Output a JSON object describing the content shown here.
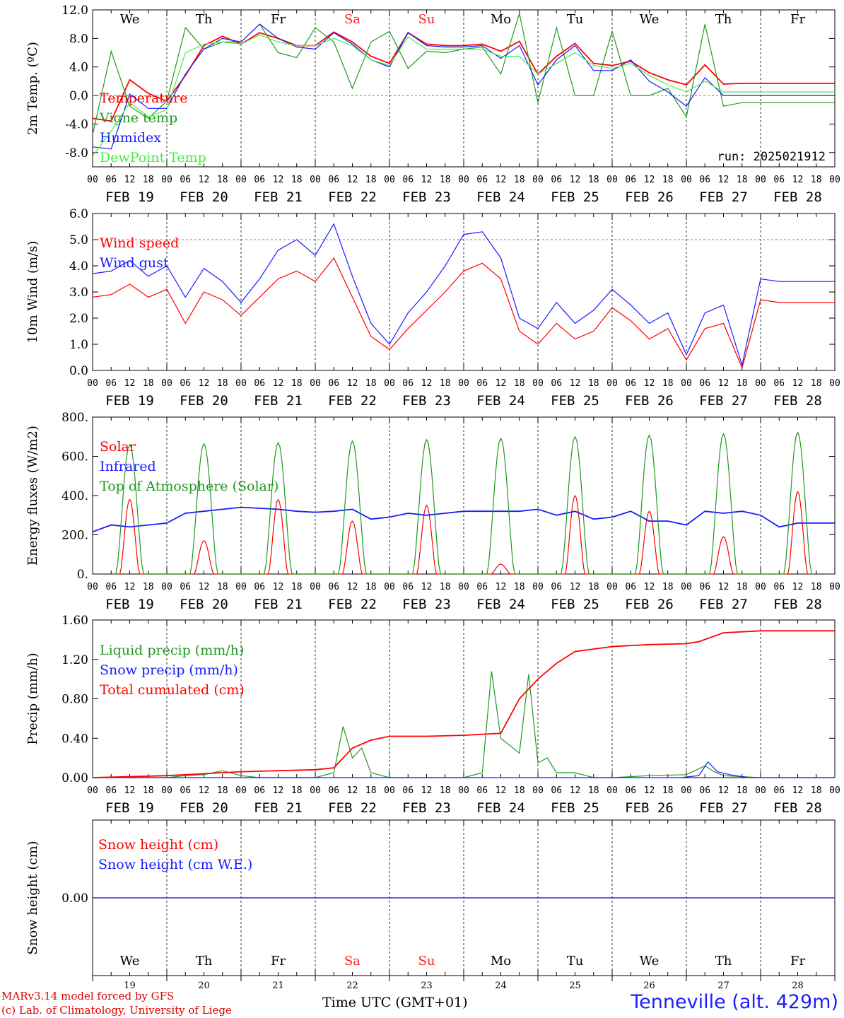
{
  "meteogram": {
    "run_label": "run: 2025021912",
    "days": [
      {
        "name": "We",
        "date": "FEB 19",
        "num": "19",
        "weekend": false
      },
      {
        "name": "Th",
        "date": "FEB 20",
        "num": "20",
        "weekend": false
      },
      {
        "name": "Fr",
        "date": "FEB 21",
        "num": "21",
        "weekend": false
      },
      {
        "name": "Sa",
        "date": "FEB 22",
        "num": "22",
        "weekend": true
      },
      {
        "name": "Su",
        "date": "FEB 23",
        "num": "23",
        "weekend": true
      },
      {
        "name": "Mo",
        "date": "FEB 24",
        "num": "24",
        "weekend": false
      },
      {
        "name": "Tu",
        "date": "FEB 25",
        "num": "25",
        "weekend": false
      },
      {
        "name": "We",
        "date": "FEB 26",
        "num": "26",
        "weekend": false
      },
      {
        "name": "Th",
        "date": "FEB 27",
        "num": "27",
        "weekend": false
      },
      {
        "name": "Fr",
        "date": "FEB 28",
        "num": "28",
        "weekend": false
      }
    ],
    "hour_ticks": [
      "00",
      "06",
      "12",
      "18"
    ],
    "final_hour_tick": "00",
    "colors": {
      "weekend": "#ff2020",
      "weekday": "#000000"
    },
    "footer": {
      "model": "MARv3.14 model forced by GFS",
      "credit": "(c) Lab. of Climatology, University of Liege",
      "xlabel": "Time UTC (GMT+01)",
      "station": "Tenneville (alt. 429m)"
    }
  },
  "chart_data": [
    {
      "type": "line",
      "ylabel": "2m Temp. (ºC)",
      "ylim": [
        -10,
        12
      ],
      "ytick_labels": [
        "12.0",
        "8.0",
        "4.0",
        "0.0",
        "-4.0",
        "-8.0"
      ],
      "reference_line": 0,
      "x_unit": "hours since FEB 19 00 UTC",
      "series": [
        {
          "name": "Temperature",
          "color": "#ff0000",
          "x": [
            0,
            6,
            12,
            18,
            24,
            30,
            36,
            42,
            48,
            54,
            60,
            66,
            72,
            78,
            84,
            90,
            96,
            102,
            108,
            114,
            120,
            126,
            132,
            138,
            144,
            150,
            156,
            162,
            168,
            174,
            180,
            186,
            192,
            198,
            204,
            210,
            216,
            222,
            228,
            234,
            240
          ],
          "y": [
            -3.2,
            -3.6,
            2.2,
            0.3,
            -0.8,
            2.8,
            7.0,
            8.3,
            7.2,
            8.8,
            8.0,
            7.0,
            7.0,
            8.9,
            7.5,
            5.5,
            4.5,
            8.8,
            7.2,
            7.0,
            7.0,
            7.2,
            6.2,
            7.6,
            3.0,
            5.5,
            7.3,
            4.5,
            4.2,
            4.8,
            3.2,
            2.2,
            1.5,
            4.3,
            1.6,
            1.7,
            1.7,
            1.7,
            1.7,
            1.7,
            1.7
          ]
        },
        {
          "name": "Vigne temp",
          "color": "#1f9a1f",
          "x": [
            0,
            6,
            12,
            18,
            24,
            30,
            36,
            42,
            48,
            54,
            60,
            66,
            72,
            78,
            84,
            90,
            96,
            102,
            108,
            114,
            120,
            126,
            132,
            138,
            144,
            150,
            156,
            162,
            168,
            174,
            180,
            186,
            192,
            198,
            204,
            210,
            216,
            222,
            228,
            234,
            240
          ],
          "y": [
            -5.5,
            6.2,
            -1.5,
            -3.2,
            -0.8,
            9.5,
            6.5,
            7.5,
            7.5,
            10.0,
            6.0,
            5.3,
            9.5,
            7.5,
            1.0,
            7.5,
            9.0,
            3.8,
            6.2,
            6.0,
            6.5,
            6.8,
            3.0,
            11.5,
            -1.0,
            9.5,
            0.0,
            0.0,
            9.0,
            0.0,
            0.0,
            1.0,
            -3.0,
            10.0,
            -1.5,
            -1.0,
            -1.0,
            -1.0,
            -1.0,
            -1.0,
            -1.0
          ]
        },
        {
          "name": "Humidex",
          "color": "#1a1aff",
          "x": [
            0,
            6,
            12,
            18,
            24,
            30,
            36,
            42,
            48,
            54,
            60,
            66,
            72,
            78,
            84,
            90,
            96,
            102,
            108,
            114,
            120,
            126,
            132,
            138,
            144,
            150,
            156,
            162,
            168,
            174,
            180,
            186,
            192,
            198,
            204,
            210,
            216,
            222,
            228,
            234,
            240
          ],
          "y": [
            -7.2,
            -7.5,
            0.2,
            -1.8,
            -1.8,
            3.0,
            6.5,
            8.0,
            7.5,
            10.0,
            8.0,
            6.8,
            6.5,
            8.8,
            7.2,
            5.0,
            4.0,
            8.8,
            7.0,
            6.8,
            6.8,
            7.0,
            5.2,
            7.0,
            1.5,
            5.0,
            7.0,
            3.5,
            3.5,
            5.0,
            2.0,
            0.5,
            -1.5,
            2.5,
            0.0,
            0.0,
            0.0,
            0.0,
            0.0,
            0.0,
            0.0
          ]
        },
        {
          "name": "DewPoint Temp",
          "color": "#44ee44",
          "x": [
            0,
            6,
            12,
            18,
            24,
            30,
            36,
            42,
            48,
            54,
            60,
            66,
            72,
            78,
            84,
            90,
            96,
            102,
            108,
            114,
            120,
            126,
            132,
            138,
            144,
            150,
            156,
            162,
            168,
            174,
            180,
            186,
            192,
            198,
            204,
            210,
            216,
            222,
            228,
            234,
            240
          ],
          "y": [
            -8.5,
            -5.0,
            -1.0,
            -3.0,
            -2.0,
            6.0,
            7.2,
            7.5,
            7.2,
            8.5,
            7.5,
            7.0,
            7.0,
            8.0,
            7.0,
            5.0,
            4.2,
            8.2,
            6.5,
            6.5,
            6.5,
            6.5,
            5.5,
            5.5,
            3.0,
            4.5,
            6.0,
            4.2,
            3.8,
            4.5,
            2.8,
            1.5,
            0.5,
            2.0,
            0.5,
            0.5,
            0.5,
            0.5,
            0.5,
            0.5,
            0.5
          ]
        }
      ]
    },
    {
      "type": "line",
      "ylabel": "10m Wind (m/s)",
      "ylim": [
        0,
        6
      ],
      "ytick_labels": [
        "6.0",
        "5.0",
        "4.0",
        "3.0",
        "2.0",
        "1.0",
        "0.0"
      ],
      "reference_line": 5,
      "x_unit": "hours since FEB 19 00 UTC",
      "series": [
        {
          "name": "Wind speed",
          "color": "#ff0000",
          "x": [
            0,
            6,
            12,
            18,
            24,
            30,
            36,
            42,
            48,
            54,
            60,
            66,
            72,
            78,
            84,
            90,
            96,
            102,
            108,
            114,
            120,
            126,
            132,
            138,
            144,
            150,
            156,
            162,
            168,
            174,
            180,
            186,
            192,
            198,
            204,
            210,
            216,
            222,
            228,
            234,
            240
          ],
          "y": [
            2.8,
            2.9,
            3.3,
            2.8,
            3.1,
            1.8,
            3.0,
            2.7,
            2.1,
            2.8,
            3.5,
            3.8,
            3.4,
            4.3,
            2.8,
            1.3,
            0.8,
            1.6,
            2.3,
            3.0,
            3.8,
            4.1,
            3.5,
            1.5,
            1.0,
            1.8,
            1.2,
            1.5,
            2.4,
            1.9,
            1.2,
            1.6,
            0.4,
            1.6,
            1.8,
            0.1,
            2.7,
            2.6,
            2.6,
            2.6,
            2.6
          ]
        },
        {
          "name": "Wind gust",
          "color": "#1a1aff",
          "x": [
            0,
            6,
            12,
            18,
            24,
            30,
            36,
            42,
            48,
            54,
            60,
            66,
            72,
            78,
            84,
            90,
            96,
            102,
            108,
            114,
            120,
            126,
            132,
            138,
            144,
            150,
            156,
            162,
            168,
            174,
            180,
            186,
            192,
            198,
            204,
            210,
            216,
            222,
            228,
            234,
            240
          ],
          "y": [
            3.7,
            3.8,
            4.2,
            3.6,
            4.0,
            2.8,
            3.9,
            3.4,
            2.6,
            3.5,
            4.6,
            5.0,
            4.4,
            5.6,
            3.6,
            1.8,
            1.0,
            2.2,
            3.0,
            4.0,
            5.2,
            5.3,
            4.3,
            2.0,
            1.6,
            2.6,
            1.8,
            2.3,
            3.1,
            2.5,
            1.8,
            2.2,
            0.6,
            2.2,
            2.5,
            0.2,
            3.5,
            3.4,
            3.4,
            3.4,
            3.4
          ]
        }
      ]
    },
    {
      "type": "line",
      "ylabel": "Energy fluxes (W/m2)",
      "ylim": [
        0,
        800
      ],
      "ytick_labels": [
        "800.",
        "600.",
        "400.",
        "200.",
        "0."
      ],
      "x_unit": "hours since FEB 19 00 UTC",
      "series": [
        {
          "name": "Solar",
          "color": "#ff0000",
          "daily_peaks": [
            380,
            170,
            380,
            270,
            350,
            50,
            400,
            320,
            190,
            420
          ]
        },
        {
          "name": "Infrared",
          "color": "#1a1aff",
          "x": [
            0,
            6,
            12,
            18,
            24,
            30,
            36,
            42,
            48,
            54,
            60,
            66,
            72,
            78,
            84,
            90,
            96,
            102,
            108,
            114,
            120,
            126,
            132,
            138,
            144,
            150,
            156,
            162,
            168,
            174,
            180,
            186,
            192,
            198,
            204,
            210,
            216,
            222,
            228,
            234,
            240
          ],
          "y": [
            215,
            250,
            240,
            250,
            260,
            310,
            320,
            330,
            340,
            335,
            330,
            320,
            315,
            320,
            330,
            280,
            290,
            310,
            300,
            310,
            320,
            320,
            320,
            320,
            330,
            300,
            320,
            280,
            290,
            320,
            270,
            270,
            250,
            320,
            310,
            320,
            300,
            240,
            260,
            260,
            260
          ]
        },
        {
          "name": "Top of Atmosphere (Solar)",
          "color": "#1f9a1f",
          "daily_peaks": [
            660,
            665,
            670,
            678,
            685,
            692,
            700,
            708,
            715,
            722
          ]
        }
      ]
    },
    {
      "type": "line",
      "ylabel": "Precip (mm/h)",
      "ylim": [
        0,
        1.6
      ],
      "ytick_labels": [
        "1.60",
        "1.20",
        "0.80",
        "0.40",
        "0.00"
      ],
      "x_unit": "hours since FEB 19 00 UTC",
      "series": [
        {
          "name": "Liquid precip (mm/h)",
          "color": "#1f9a1f",
          "x": [
            0,
            24,
            30,
            36,
            42,
            48,
            54,
            72,
            78,
            81,
            84,
            87,
            90,
            96,
            108,
            120,
            126,
            129,
            132,
            138,
            141,
            144,
            147,
            150,
            156,
            162,
            168,
            180,
            192,
            198,
            201,
            204,
            210,
            216,
            240
          ],
          "y": [
            0,
            0,
            0.02,
            0.03,
            0.07,
            0.02,
            0,
            0,
            0.05,
            0.52,
            0.2,
            0.3,
            0.05,
            0,
            0,
            0,
            0.05,
            1.08,
            0.4,
            0.25,
            1.05,
            0.15,
            0.2,
            0.05,
            0.05,
            0,
            0,
            0.02,
            0.03,
            0.12,
            0.06,
            0.02,
            0.01,
            0,
            0
          ]
        },
        {
          "name": "Snow precip (mm/h)",
          "color": "#1a1aff",
          "x": [
            0,
            190,
            196,
            199,
            202,
            206,
            212,
            240
          ],
          "y": [
            0,
            0,
            0.02,
            0.16,
            0.06,
            0.03,
            0,
            0
          ]
        },
        {
          "name": "Total cumulated (cm)",
          "color": "#ff0000",
          "x": [
            0,
            24,
            48,
            72,
            78,
            84,
            90,
            96,
            108,
            120,
            132,
            138,
            144,
            150,
            156,
            168,
            180,
            192,
            196,
            204,
            216,
            228,
            240
          ],
          "y": [
            0,
            0.02,
            0.06,
            0.08,
            0.1,
            0.3,
            0.38,
            0.42,
            0.42,
            0.43,
            0.45,
            0.8,
            1.0,
            1.16,
            1.28,
            1.33,
            1.35,
            1.36,
            1.38,
            1.47,
            1.49,
            1.49,
            1.49
          ]
        }
      ]
    },
    {
      "type": "line",
      "ylabel": "Snow height (cm)",
      "ytick_labels": [
        "0.00"
      ],
      "x_unit": "hours since FEB 19 00 UTC",
      "series": [
        {
          "name": "Snow height (cm)",
          "color": "#ff0000",
          "x": [
            0,
            240
          ],
          "y": [
            0,
            0
          ]
        },
        {
          "name": "Snow height (cm W.E.)",
          "color": "#1a1aff",
          "x": [
            0,
            240
          ],
          "y": [
            0,
            0
          ]
        }
      ]
    }
  ]
}
